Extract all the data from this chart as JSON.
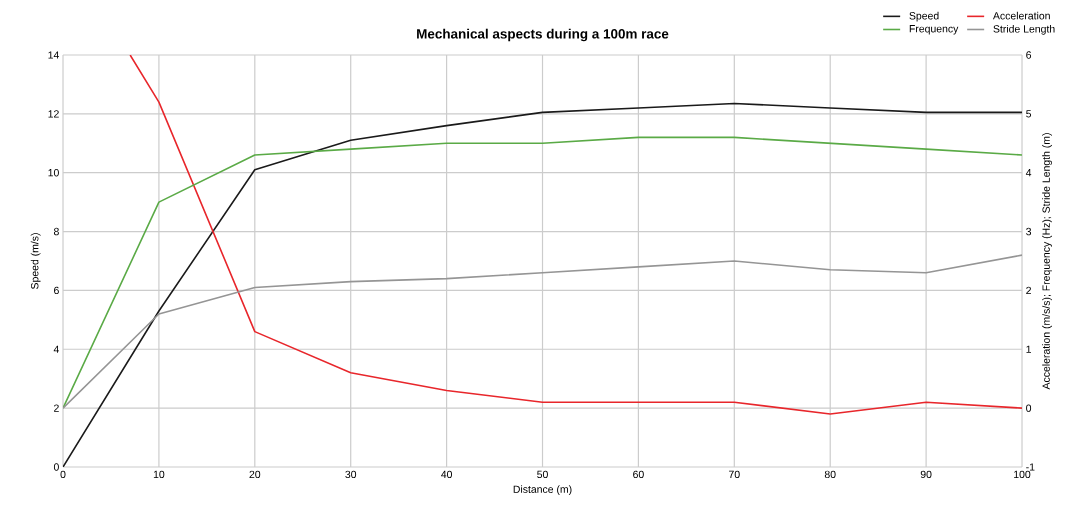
{
  "chart_data": {
    "type": "line",
    "title": "Mechanical aspects during a 100m race",
    "xlabel": "Distance (m)",
    "ylabel": "Speed (m/s)",
    "y2label": "Acceleration (m/s/s); Frequency (Hz); Stride Length (m)",
    "x": [
      0,
      10,
      20,
      30,
      40,
      50,
      60,
      70,
      80,
      90,
      100
    ],
    "series": [
      {
        "name": "Speed",
        "color": "#1a1a1a",
        "values": [
          0,
          5.3,
          10.1,
          11.1,
          11.6,
          12.05,
          12.2,
          12.35,
          12.2,
          12.05,
          12.05
        ]
      },
      {
        "name": "Acceleration",
        "color": "#e8262b",
        "axis": "y2",
        "x": [
          7,
          10,
          20,
          30,
          40,
          50,
          60,
          70,
          80,
          90,
          100
        ],
        "values": [
          6,
          5.2,
          1.3,
          0.6,
          0.3,
          0.1,
          0.1,
          0.1,
          -0.1,
          0.1,
          0
        ]
      },
      {
        "name": "Frequency",
        "color": "#5aaa46",
        "axis": "y2",
        "values": [
          0,
          3.5,
          4.3,
          4.4,
          4.5,
          4.5,
          4.6,
          4.6,
          4.5,
          4.4,
          4.3
        ]
      },
      {
        "name": "Stride Length",
        "color": "#959595",
        "axis": "y2",
        "values": [
          0,
          1.6,
          2.05,
          2.15,
          2.2,
          2.3,
          2.4,
          2.5,
          2.35,
          2.3,
          2.6
        ]
      }
    ],
    "xlim": [
      0,
      100
    ],
    "xticks": [
      0,
      10,
      20,
      30,
      40,
      50,
      60,
      70,
      80,
      90,
      100
    ],
    "ylim": [
      0,
      14
    ],
    "yticks": [
      0,
      2,
      4,
      6,
      8,
      10,
      12,
      14
    ],
    "y2lim": [
      -1,
      6
    ],
    "y2ticks": [
      -1,
      0,
      1,
      2,
      3,
      4,
      5,
      6
    ],
    "grid": true,
    "legend": "top right",
    "marker": "none",
    "line_style": "solid"
  }
}
